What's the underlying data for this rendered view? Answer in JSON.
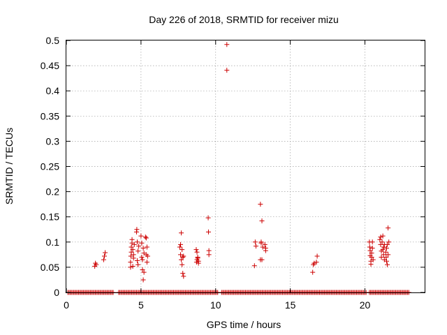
{
  "chart_data": {
    "type": "scatter",
    "title": "Day 226 of 2018, SRMTID for receiver mizu",
    "xlabel": "GPS time / hours",
    "ylabel": "SRMTID / TECUs",
    "xlim": [
      0,
      24
    ],
    "ylim": [
      0,
      0.5
    ],
    "xticks": [
      0,
      5,
      10,
      15,
      20
    ],
    "xtick_labels": [
      "0",
      "5",
      "10",
      "15",
      "20"
    ],
    "yticks": [
      0,
      0.05,
      0.1,
      0.15,
      0.2,
      0.25,
      0.3,
      0.35,
      0.4,
      0.45,
      0.5
    ],
    "ytick_labels": [
      "0",
      "0.05",
      "0.1",
      "0.15",
      "0.2",
      "0.25",
      "0.3",
      "0.35",
      "0.4",
      "0.45",
      "0.5"
    ],
    "grid": true,
    "marker": "+",
    "series": [
      {
        "name": "SRMTID",
        "color": "#cc0000",
        "zero_line": {
          "value": 0,
          "x_ranges": [
            [
              0.1,
              3.2
            ],
            [
              3.5,
              10.2
            ],
            [
              10.4,
              20.1
            ],
            [
              20.3,
              23.0
            ]
          ],
          "step": 0.08
        },
        "points": [
          [
            1.9,
            0.052
          ],
          [
            1.95,
            0.058
          ],
          [
            2.0,
            0.055
          ],
          [
            2.5,
            0.065
          ],
          [
            2.55,
            0.072
          ],
          [
            2.6,
            0.079
          ],
          [
            4.3,
            0.05
          ],
          [
            4.3,
            0.06
          ],
          [
            4.32,
            0.072
          ],
          [
            4.35,
            0.08
          ],
          [
            4.35,
            0.09
          ],
          [
            4.4,
            0.098
          ],
          [
            4.4,
            0.105
          ],
          [
            4.45,
            0.052
          ],
          [
            4.45,
            0.085
          ],
          [
            4.5,
            0.068
          ],
          [
            4.5,
            0.075
          ],
          [
            4.55,
            0.095
          ],
          [
            4.7,
            0.12
          ],
          [
            4.72,
            0.125
          ],
          [
            4.75,
            0.1
          ],
          [
            4.75,
            0.063
          ],
          [
            4.8,
            0.055
          ],
          [
            4.8,
            0.082
          ],
          [
            4.85,
            0.092
          ],
          [
            5.0,
            0.112
          ],
          [
            5.05,
            0.098
          ],
          [
            5.05,
            0.07
          ],
          [
            5.1,
            0.045
          ],
          [
            5.1,
            0.065
          ],
          [
            5.15,
            0.025
          ],
          [
            5.15,
            0.088
          ],
          [
            5.2,
            0.04
          ],
          [
            5.2,
            0.078
          ],
          [
            5.3,
            0.11
          ],
          [
            5.35,
            0.108
          ],
          [
            5.35,
            0.075
          ],
          [
            5.4,
            0.09
          ],
          [
            5.4,
            0.06
          ],
          [
            5.45,
            0.072
          ],
          [
            7.6,
            0.09
          ],
          [
            7.65,
            0.095
          ],
          [
            7.65,
            0.075
          ],
          [
            7.7,
            0.118
          ],
          [
            7.7,
            0.065
          ],
          [
            7.75,
            0.085
          ],
          [
            7.75,
            0.055
          ],
          [
            7.8,
            0.07
          ],
          [
            7.8,
            0.038
          ],
          [
            7.85,
            0.032
          ],
          [
            7.85,
            0.072
          ],
          [
            8.7,
            0.085
          ],
          [
            8.72,
            0.06
          ],
          [
            8.75,
            0.065
          ],
          [
            8.75,
            0.08
          ],
          [
            8.8,
            0.07
          ],
          [
            8.8,
            0.068
          ],
          [
            8.85,
            0.058
          ],
          [
            8.85,
            0.062
          ],
          [
            9.5,
            0.148
          ],
          [
            9.52,
            0.12
          ],
          [
            9.55,
            0.083
          ],
          [
            9.55,
            0.075
          ],
          [
            10.75,
            0.492
          ],
          [
            10.75,
            0.441
          ],
          [
            12.6,
            0.053
          ],
          [
            12.65,
            0.1
          ],
          [
            12.7,
            0.092
          ],
          [
            13.0,
            0.175
          ],
          [
            13.05,
            0.1
          ],
          [
            13.05,
            0.098
          ],
          [
            13.1,
            0.142
          ],
          [
            13.1,
            0.065
          ],
          [
            13.0,
            0.065
          ],
          [
            13.15,
            0.09
          ],
          [
            13.3,
            0.095
          ],
          [
            13.35,
            0.088
          ],
          [
            13.35,
            0.083
          ],
          [
            16.5,
            0.04
          ],
          [
            16.55,
            0.055
          ],
          [
            16.6,
            0.058
          ],
          [
            16.75,
            0.06
          ],
          [
            16.8,
            0.072
          ],
          [
            20.3,
            0.1
          ],
          [
            20.32,
            0.09
          ],
          [
            20.35,
            0.083
          ],
          [
            20.35,
            0.073
          ],
          [
            20.4,
            0.062
          ],
          [
            20.4,
            0.056
          ],
          [
            20.45,
            0.078
          ],
          [
            20.45,
            0.07
          ],
          [
            20.5,
            0.088
          ],
          [
            20.5,
            0.1
          ],
          [
            20.55,
            0.065
          ],
          [
            21.0,
            0.105
          ],
          [
            21.05,
            0.11
          ],
          [
            21.05,
            0.095
          ],
          [
            21.1,
            0.07
          ],
          [
            21.1,
            0.082
          ],
          [
            21.15,
            0.1
          ],
          [
            21.2,
            0.085
          ],
          [
            21.2,
            0.112
          ],
          [
            21.25,
            0.09
          ],
          [
            21.25,
            0.075
          ],
          [
            21.3,
            0.065
          ],
          [
            21.3,
            0.095
          ],
          [
            21.4,
            0.08
          ],
          [
            21.42,
            0.07
          ],
          [
            21.45,
            0.088
          ],
          [
            21.45,
            0.062
          ],
          [
            21.5,
            0.095
          ],
          [
            21.5,
            0.055
          ],
          [
            21.55,
            0.128
          ],
          [
            21.55,
            0.075
          ],
          [
            21.6,
            0.1
          ]
        ]
      }
    ]
  }
}
